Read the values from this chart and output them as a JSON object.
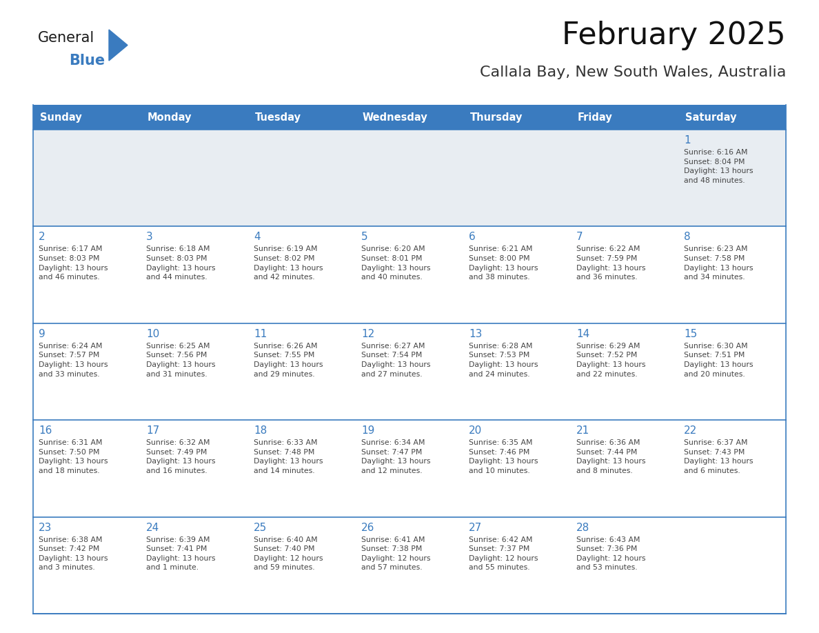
{
  "title": "February 2025",
  "subtitle": "Callala Bay, New South Wales, Australia",
  "header_bg": "#3a7bbf",
  "header_text_color": "#ffffff",
  "first_row_bg": "#e8edf2",
  "cell_bg": "#ffffff",
  "border_color": "#3a7bbf",
  "text_color": "#444444",
  "day_number_color": "#3a7bbf",
  "days_of_week": [
    "Sunday",
    "Monday",
    "Tuesday",
    "Wednesday",
    "Thursday",
    "Friday",
    "Saturday"
  ],
  "weeks": [
    [
      {
        "day": null,
        "info": ""
      },
      {
        "day": null,
        "info": ""
      },
      {
        "day": null,
        "info": ""
      },
      {
        "day": null,
        "info": ""
      },
      {
        "day": null,
        "info": ""
      },
      {
        "day": null,
        "info": ""
      },
      {
        "day": 1,
        "info": "Sunrise: 6:16 AM\nSunset: 8:04 PM\nDaylight: 13 hours\nand 48 minutes."
      }
    ],
    [
      {
        "day": 2,
        "info": "Sunrise: 6:17 AM\nSunset: 8:03 PM\nDaylight: 13 hours\nand 46 minutes."
      },
      {
        "day": 3,
        "info": "Sunrise: 6:18 AM\nSunset: 8:03 PM\nDaylight: 13 hours\nand 44 minutes."
      },
      {
        "day": 4,
        "info": "Sunrise: 6:19 AM\nSunset: 8:02 PM\nDaylight: 13 hours\nand 42 minutes."
      },
      {
        "day": 5,
        "info": "Sunrise: 6:20 AM\nSunset: 8:01 PM\nDaylight: 13 hours\nand 40 minutes."
      },
      {
        "day": 6,
        "info": "Sunrise: 6:21 AM\nSunset: 8:00 PM\nDaylight: 13 hours\nand 38 minutes."
      },
      {
        "day": 7,
        "info": "Sunrise: 6:22 AM\nSunset: 7:59 PM\nDaylight: 13 hours\nand 36 minutes."
      },
      {
        "day": 8,
        "info": "Sunrise: 6:23 AM\nSunset: 7:58 PM\nDaylight: 13 hours\nand 34 minutes."
      }
    ],
    [
      {
        "day": 9,
        "info": "Sunrise: 6:24 AM\nSunset: 7:57 PM\nDaylight: 13 hours\nand 33 minutes."
      },
      {
        "day": 10,
        "info": "Sunrise: 6:25 AM\nSunset: 7:56 PM\nDaylight: 13 hours\nand 31 minutes."
      },
      {
        "day": 11,
        "info": "Sunrise: 6:26 AM\nSunset: 7:55 PM\nDaylight: 13 hours\nand 29 minutes."
      },
      {
        "day": 12,
        "info": "Sunrise: 6:27 AM\nSunset: 7:54 PM\nDaylight: 13 hours\nand 27 minutes."
      },
      {
        "day": 13,
        "info": "Sunrise: 6:28 AM\nSunset: 7:53 PM\nDaylight: 13 hours\nand 24 minutes."
      },
      {
        "day": 14,
        "info": "Sunrise: 6:29 AM\nSunset: 7:52 PM\nDaylight: 13 hours\nand 22 minutes."
      },
      {
        "day": 15,
        "info": "Sunrise: 6:30 AM\nSunset: 7:51 PM\nDaylight: 13 hours\nand 20 minutes."
      }
    ],
    [
      {
        "day": 16,
        "info": "Sunrise: 6:31 AM\nSunset: 7:50 PM\nDaylight: 13 hours\nand 18 minutes."
      },
      {
        "day": 17,
        "info": "Sunrise: 6:32 AM\nSunset: 7:49 PM\nDaylight: 13 hours\nand 16 minutes."
      },
      {
        "day": 18,
        "info": "Sunrise: 6:33 AM\nSunset: 7:48 PM\nDaylight: 13 hours\nand 14 minutes."
      },
      {
        "day": 19,
        "info": "Sunrise: 6:34 AM\nSunset: 7:47 PM\nDaylight: 13 hours\nand 12 minutes."
      },
      {
        "day": 20,
        "info": "Sunrise: 6:35 AM\nSunset: 7:46 PM\nDaylight: 13 hours\nand 10 minutes."
      },
      {
        "day": 21,
        "info": "Sunrise: 6:36 AM\nSunset: 7:44 PM\nDaylight: 13 hours\nand 8 minutes."
      },
      {
        "day": 22,
        "info": "Sunrise: 6:37 AM\nSunset: 7:43 PM\nDaylight: 13 hours\nand 6 minutes."
      }
    ],
    [
      {
        "day": 23,
        "info": "Sunrise: 6:38 AM\nSunset: 7:42 PM\nDaylight: 13 hours\nand 3 minutes."
      },
      {
        "day": 24,
        "info": "Sunrise: 6:39 AM\nSunset: 7:41 PM\nDaylight: 13 hours\nand 1 minute."
      },
      {
        "day": 25,
        "info": "Sunrise: 6:40 AM\nSunset: 7:40 PM\nDaylight: 12 hours\nand 59 minutes."
      },
      {
        "day": 26,
        "info": "Sunrise: 6:41 AM\nSunset: 7:38 PM\nDaylight: 12 hours\nand 57 minutes."
      },
      {
        "day": 27,
        "info": "Sunrise: 6:42 AM\nSunset: 7:37 PM\nDaylight: 12 hours\nand 55 minutes."
      },
      {
        "day": 28,
        "info": "Sunrise: 6:43 AM\nSunset: 7:36 PM\nDaylight: 12 hours\nand 53 minutes."
      },
      {
        "day": null,
        "info": ""
      }
    ]
  ],
  "logo_text_general": "General",
  "logo_text_blue": "Blue",
  "logo_color_general": "#1a1a1a",
  "logo_color_blue": "#3a7bbf",
  "logo_triangle_color": "#3a7bbf",
  "fig_width": 11.88,
  "fig_height": 9.18,
  "dpi": 100
}
